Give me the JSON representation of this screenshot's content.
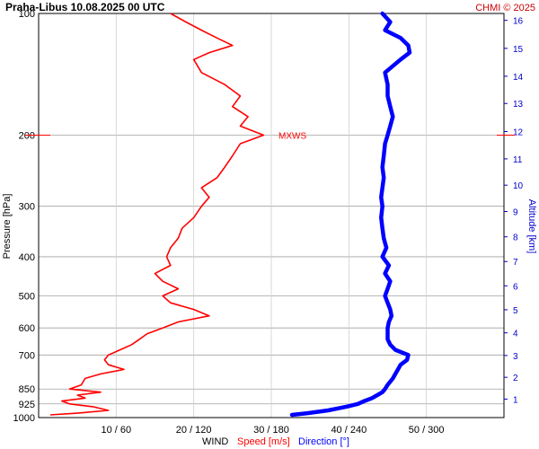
{
  "header": {
    "title": "Praha-Libus    10.08.2025 00 UTC",
    "copyright": "CHMI © 2025"
  },
  "colors": {
    "speed": "#ff0000",
    "direction": "#0000ff",
    "altitude_axis": "#0000cc",
    "grid": "#a0a0a0"
  },
  "chart_data": {
    "type": "line",
    "title": "Praha-Libus    10.08.2025 00 UTC",
    "ylabel": "Pressure [hPa]",
    "y2label": "Altitude [km]",
    "xlabel_prefix": "WIND",
    "xlabel_speed": "Speed [m/s]",
    "xlabel_direction": "Direction [°]",
    "y_scale": "log",
    "ylim": [
      1000,
      100
    ],
    "pressure_ticks": [
      100,
      200,
      300,
      400,
      500,
      600,
      700,
      850,
      925,
      1000
    ],
    "altitude_ticks": [
      {
        "km": 1,
        "p": 900
      },
      {
        "km": 2,
        "p": 795
      },
      {
        "km": 3,
        "p": 702
      },
      {
        "km": 4,
        "p": 617
      },
      {
        "km": 5,
        "p": 541
      },
      {
        "km": 6,
        "p": 472
      },
      {
        "km": 7,
        "p": 411
      },
      {
        "km": 8,
        "p": 357
      },
      {
        "km": 9,
        "p": 309
      },
      {
        "km": 10,
        "p": 266
      },
      {
        "km": 11,
        "p": 229
      },
      {
        "km": 12,
        "p": 196
      },
      {
        "km": 13,
        "p": 167
      },
      {
        "km": 14,
        "p": 143
      },
      {
        "km": 15,
        "p": 122
      },
      {
        "km": 16,
        "p": 104
      }
    ],
    "x_ticks": [
      "10 / 60",
      "20 / 120",
      "30 / 180",
      "40 / 240",
      "50 / 300"
    ],
    "speed_range": [
      0,
      60
    ],
    "direction_range": [
      0,
      360
    ],
    "max_wind": {
      "label": "MXWS",
      "pressure": 200
    },
    "series": [
      {
        "name": "Speed [m/s]",
        "unit": "m/s",
        "pressure": [
          985,
          975,
          960,
          940,
          925,
          910,
          895,
          880,
          865,
          850,
          830,
          800,
          780,
          760,
          740,
          720,
          700,
          680,
          660,
          640,
          620,
          600,
          580,
          560,
          540,
          520,
          500,
          480,
          460,
          440,
          420,
          400,
          380,
          360,
          340,
          320,
          300,
          285,
          270,
          255,
          240,
          225,
          210,
          200,
          190,
          180,
          170,
          160,
          150,
          140,
          130,
          125,
          120,
          115,
          110,
          105,
          100
        ],
        "values": [
          1.5,
          5,
          9,
          7,
          4,
          3,
          6,
          5,
          8,
          4,
          5.5,
          6,
          8,
          11,
          9,
          8.5,
          9,
          10.5,
          12,
          13,
          14,
          16,
          18,
          22,
          20,
          17,
          16,
          18,
          16,
          15,
          17,
          16.5,
          17,
          18,
          18.5,
          20,
          21,
          22,
          21,
          23,
          24,
          25,
          26,
          29,
          26,
          27,
          25,
          26,
          24,
          21,
          20,
          22,
          25,
          23,
          21,
          19,
          17
        ]
      },
      {
        "name": "Direction [°]",
        "unit": "°",
        "pressure": [
          985,
          975,
          960,
          940,
          925,
          910,
          895,
          880,
          865,
          850,
          830,
          800,
          780,
          760,
          740,
          720,
          700,
          680,
          660,
          640,
          620,
          600,
          580,
          560,
          540,
          520,
          500,
          480,
          460,
          440,
          420,
          400,
          380,
          360,
          340,
          320,
          300,
          285,
          270,
          255,
          240,
          225,
          210,
          200,
          190,
          180,
          170,
          160,
          150,
          140,
          130,
          125,
          120,
          115,
          110,
          105,
          100
        ],
        "values": [
          196,
          208,
          224,
          238,
          247,
          252,
          258,
          262,
          266,
          268,
          270,
          274,
          276,
          278,
          280,
          285,
          286,
          276,
          272,
          270,
          270,
          270,
          271,
          273,
          272,
          270,
          268,
          270,
          272,
          268,
          271,
          266,
          269,
          267,
          266,
          265,
          266,
          265,
          266,
          267,
          266,
          267,
          268,
          270,
          272,
          274,
          272,
          270,
          270,
          268,
          280,
          287,
          286,
          280,
          268,
          272,
          266
        ]
      }
    ]
  }
}
